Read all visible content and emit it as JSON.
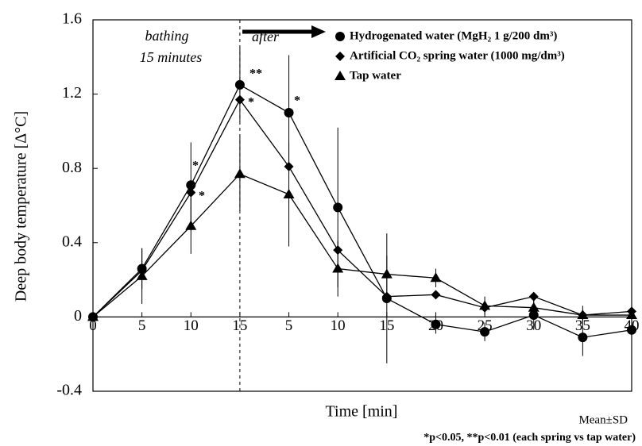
{
  "chart_data": {
    "type": "line",
    "ylabel": "Deep body temperature [Δ°C]",
    "xlabel": "Time [min]",
    "categories": [
      "0",
      "5",
      "10",
      "15",
      "5",
      "10",
      "15",
      "20",
      "25",
      "30",
      "35",
      "40"
    ],
    "ylim": [
      -0.4,
      1.6
    ],
    "yticks": [
      -0.4,
      0,
      0.4,
      0.8,
      1.2,
      1.6
    ],
    "series": [
      {
        "name": "Hydrogenated water (MgH₂ 1 g/200 dm³)",
        "color": "#000000",
        "marker": "circle",
        "values": [
          0,
          0.26,
          0.71,
          1.25,
          1.1,
          0.59,
          0.1,
          -0.04,
          -0.08,
          0.01,
          -0.11,
          -0.07
        ],
        "errors": [
          0,
          0.11,
          0.23,
          0.2,
          0.31,
          0.43,
          0.35,
          0.05,
          0.05,
          0.08,
          0.1,
          0.05
        ]
      },
      {
        "name": "Artificial CO₂ spring water (1000 mg/dm³)",
        "color": "#000000",
        "marker": "diamond",
        "values": [
          0,
          0.25,
          0.67,
          1.17,
          0.81,
          0.36,
          0.11,
          0.12,
          0.05,
          0.11,
          0.01,
          0.03
        ]
      },
      {
        "name": "Tap water",
        "color": "#000000",
        "marker": "triangle",
        "values": [
          0,
          0.22,
          0.49,
          0.77,
          0.66,
          0.26,
          0.23,
          0.21,
          0.06,
          0.05,
          0.01,
          0.01
        ],
        "errors": [
          0,
          0.15,
          0.15,
          0.2,
          0.28,
          0.15,
          0.1,
          0.05,
          0.05,
          0.05,
          0.05,
          0.03
        ]
      }
    ],
    "annotations": [
      "bathing",
      "15 minutes",
      "after",
      "**",
      "*",
      "*",
      "*",
      "*"
    ],
    "note": "Mean±SD",
    "footnote": "*p<0.05, **p<0.01 (each spring vs tap water)"
  }
}
